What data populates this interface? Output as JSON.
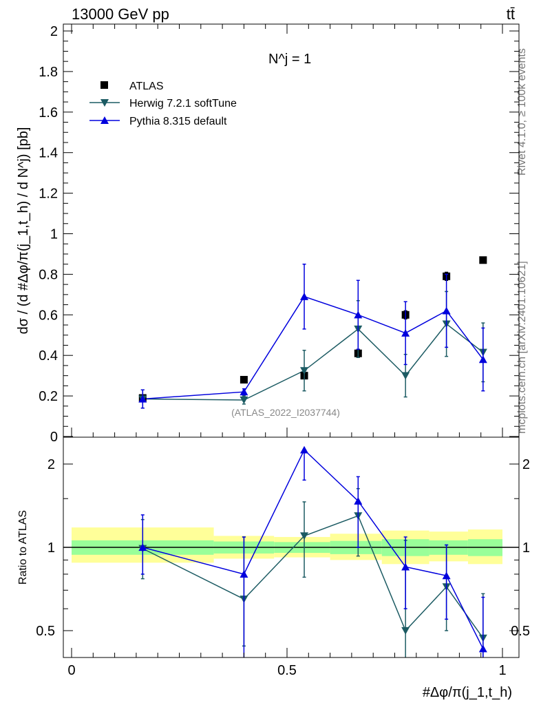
{
  "header": {
    "left": "13000 GeV pp",
    "right": "tt̄"
  },
  "side": {
    "rivet": "Rivet 4.1.0, ≥ 100k events",
    "mcplots": "mcplots.cern.ch [arXiv:2401.10621]"
  },
  "annotation": {
    "njets": "N^j = 1",
    "analysis": "(ATLAS_2022_I2037744)"
  },
  "labels": {
    "ylabel_main": "dσ / (d #Δφ/π(j_1,t_h) / d N^j) [pb]",
    "ylabel_ratio": "Ratio to ATLAS",
    "xlabel": "#Δφ/π(j_1,t_h)"
  },
  "legend": [
    "ATLAS",
    "Herwig 7.2.1 softTune",
    "Pythia 8.315 default"
  ],
  "colors": {
    "atlas": "#000000",
    "herwig": "#1c5b63",
    "pythia": "#0000dd",
    "band_inner": "#99ff99",
    "band_outer": "#ffff99"
  },
  "chart_data": [
    {
      "type": "scatter",
      "panel": "main",
      "ylim": [
        0,
        2.05
      ],
      "yticks": [
        0,
        0.2,
        0.4,
        0.6,
        0.8,
        1,
        1.2,
        1.4,
        1.6,
        1.8,
        2
      ],
      "ytick_labels": [
        "0",
        "0.2",
        "0.4",
        "0.6",
        "0.8",
        "1",
        "1.2",
        "1.4",
        "1.6",
        "1.8",
        "2"
      ],
      "xlim": [
        0,
        1
      ],
      "series": [
        {
          "name": "ATLAS",
          "x": [
            0.165,
            0.4,
            0.54,
            0.665,
            0.775,
            0.87,
            0.955
          ],
          "values": [
            0.19,
            0.28,
            0.3,
            0.41,
            0.6,
            0.79,
            0.87
          ],
          "err": [
            0.01,
            0.01,
            0.01,
            0.02,
            0.02,
            0.02,
            0.01
          ]
        },
        {
          "name": "Herwig 7.2.1 softTune",
          "x": [
            0.165,
            0.4,
            0.54,
            0.665,
            0.775,
            0.87,
            0.955
          ],
          "values": [
            0.185,
            0.18,
            0.325,
            0.53,
            0.3,
            0.555,
            0.415
          ],
          "err": [
            0.045,
            0.02,
            0.1,
            0.14,
            0.105,
            0.16,
            0.145
          ]
        },
        {
          "name": "Pythia 8.315 default",
          "x": [
            0.165,
            0.4,
            0.54,
            0.665,
            0.775,
            0.87,
            0.955
          ],
          "values": [
            0.185,
            0.22,
            0.69,
            0.6,
            0.51,
            0.62,
            0.38
          ],
          "err": [
            0.045,
            0.015,
            0.16,
            0.17,
            0.155,
            0.18,
            0.155
          ]
        }
      ]
    },
    {
      "type": "scatter",
      "panel": "ratio",
      "scale": "log",
      "ylim": [
        0.42,
        2.35
      ],
      "yticks": [
        0.5,
        1,
        2
      ],
      "ytick_labels": [
        "0.5",
        "1",
        "2"
      ],
      "xlim": [
        0,
        1
      ],
      "xticks": [
        0,
        0.5,
        1
      ],
      "xtick_labels": [
        "0",
        "0.5",
        "1"
      ],
      "bands": {
        "edges": [
          0,
          0.33,
          0.47,
          0.6,
          0.72,
          0.83,
          0.92,
          1.0
        ],
        "inner": [
          [
            0.94,
            1.06
          ],
          [
            0.95,
            1.05
          ],
          [
            0.955,
            1.045
          ],
          [
            0.945,
            1.055
          ],
          [
            0.93,
            1.07
          ],
          [
            0.94,
            1.06
          ],
          [
            0.93,
            1.07
          ]
        ],
        "outer": [
          [
            0.88,
            1.18
          ],
          [
            0.91,
            1.1
          ],
          [
            0.92,
            1.09
          ],
          [
            0.9,
            1.12
          ],
          [
            0.87,
            1.15
          ],
          [
            0.89,
            1.14
          ],
          [
            0.87,
            1.16
          ]
        ]
      },
      "series": [
        {
          "name": "Herwig 7.2.1 softTune",
          "x": [
            0.165,
            0.4,
            0.54,
            0.665,
            0.775,
            0.87,
            0.955
          ],
          "values": [
            0.99,
            0.65,
            1.1,
            1.3,
            0.5,
            0.72,
            0.47
          ],
          "lo": [
            0.77,
            0.44,
            0.78,
            0.93,
            0.34,
            0.5,
            0.33
          ],
          "hi": [
            1.26,
            1.09,
            1.46,
            1.63,
            1.06,
            1.02,
            0.68
          ]
        },
        {
          "name": "Pythia 8.315 default",
          "x": [
            0.165,
            0.4,
            0.54,
            0.665,
            0.775,
            0.87,
            0.955
          ],
          "values": [
            1.0,
            0.8,
            2.25,
            1.47,
            0.85,
            0.79,
            0.43
          ],
          "lo": [
            0.8,
            0.35,
            1.75,
            1.0,
            0.6,
            0.55,
            0.3
          ],
          "hi": [
            1.31,
            1.09,
            2.25,
            1.8,
            1.09,
            1.02,
            0.66
          ]
        }
      ]
    }
  ]
}
